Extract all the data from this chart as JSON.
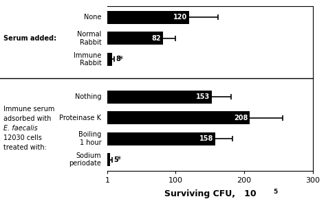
{
  "group1_label": "Serum added:",
  "group1_bars": [
    {
      "label": "None",
      "value": 120,
      "error": 42,
      "small": false,
      "star": false
    },
    {
      "label": "Normal\nRabbit",
      "value": 82,
      "error": 18,
      "small": false,
      "star": false
    },
    {
      "label": "Immune\nRabbit",
      "value": 8,
      "error": 3,
      "small": true,
      "star": true
    }
  ],
  "group2_label_lines": [
    "Immune serum",
    "adsorbed with",
    "E. faecalis",
    "12030 cells",
    "treated with:"
  ],
  "group2_label_italic": [
    false,
    false,
    true,
    false,
    false
  ],
  "group2_bars": [
    {
      "label": "Nothing",
      "value": 153,
      "error": 28,
      "small": false,
      "star": false
    },
    {
      "label": "Proteinase K",
      "value": 208,
      "error": 48,
      "small": false,
      "star": false
    },
    {
      "label": "Boiling\n1 hour",
      "value": 158,
      "error": 25,
      "small": false,
      "star": false
    },
    {
      "label": "Sodium\nperiodate",
      "value": 5,
      "error": 3,
      "small": true,
      "star": true
    }
  ],
  "bar_color": "#000000",
  "bar_height": 0.62,
  "xlim_min": 1,
  "xlim_max": 300,
  "xticks": [
    1,
    100,
    200,
    300
  ],
  "fontsize_bar_label": 7,
  "fontsize_tick": 8,
  "fontsize_xlabel": 9,
  "fontsize_group_label": 7,
  "fontsize_value": 7,
  "fontsize_star": 9
}
